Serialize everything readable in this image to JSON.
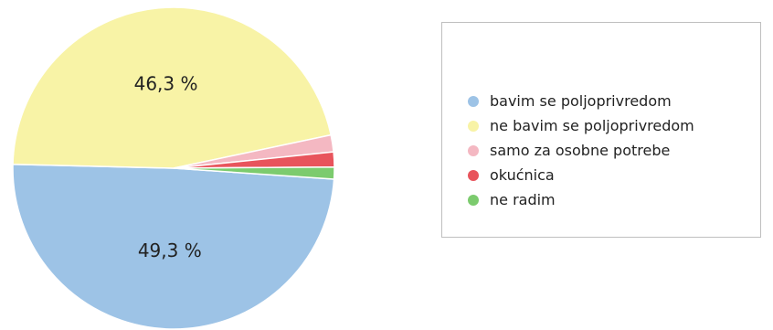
{
  "chart_data": {
    "type": "pie",
    "title": "",
    "slices": [
      {
        "label": "bavim se poljoprivredom",
        "value": 49.3,
        "data_label": "49,3 %",
        "color": "#9DC3E6"
      },
      {
        "label": "ne bavim se poljoprivredom",
        "value": 46.3,
        "data_label": "46,3 %",
        "color": "#F8F3A6"
      },
      {
        "label": "samo za osobne potrebe",
        "value": 1.7,
        "data_label": "",
        "color": "#F4B8C2"
      },
      {
        "label": "okućnica",
        "value": 1.5,
        "data_label": "",
        "color": "#E8545C"
      },
      {
        "label": "ne radim",
        "value": 1.2,
        "data_label": "",
        "color": "#7CCB6E"
      }
    ],
    "legend_position": "right"
  }
}
